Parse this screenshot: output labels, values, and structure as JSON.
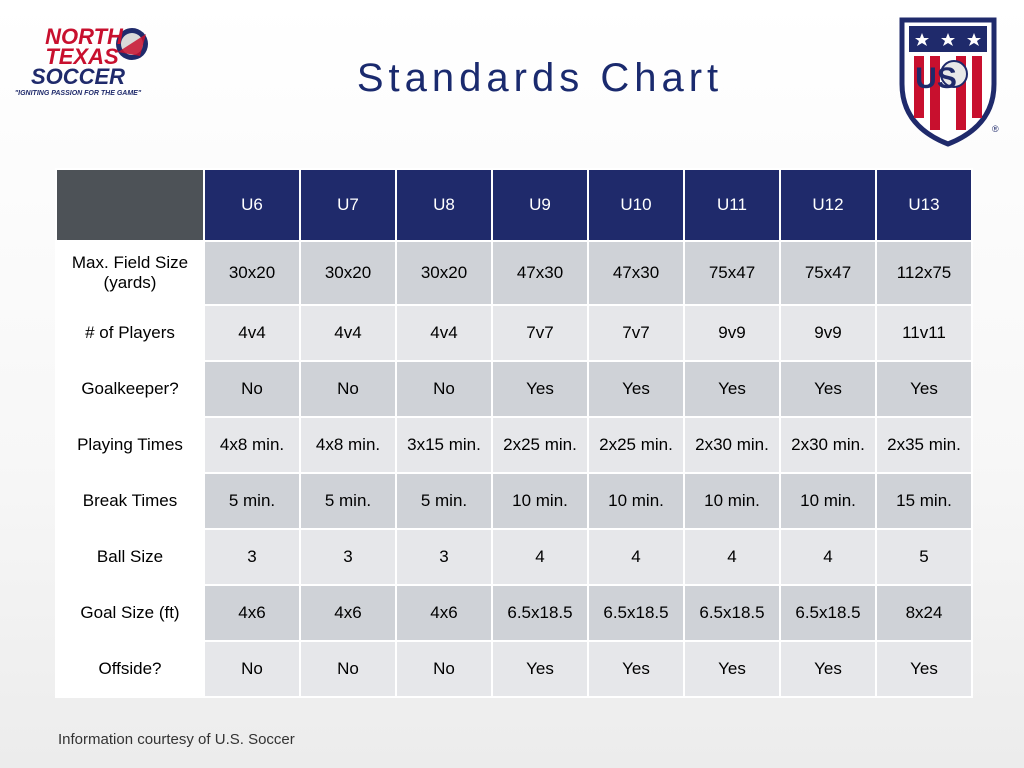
{
  "title": "Standards Chart",
  "logos": {
    "left": {
      "line1": "NORTH",
      "line2": "TEXAS",
      "line3": "SOCCER",
      "tagline": "\"IGNITING PASSION FOR THE GAME\""
    },
    "right": {
      "text": "US",
      "mark": "®"
    }
  },
  "table": {
    "columns": [
      "U6",
      "U7",
      "U8",
      "U9",
      "U10",
      "U11",
      "U12",
      "U13"
    ],
    "rows": [
      {
        "label": "Max. Field Size (yards)",
        "values": [
          "30x20",
          "30x20",
          "30x20",
          "47x30",
          "47x30",
          "75x47",
          "75x47",
          "112x75"
        ]
      },
      {
        "label": "# of Players",
        "values": [
          "4v4",
          "4v4",
          "4v4",
          "7v7",
          "7v7",
          "9v9",
          "9v9",
          "11v11"
        ]
      },
      {
        "label": "Goalkeeper?",
        "values": [
          "No",
          "No",
          "No",
          "Yes",
          "Yes",
          "Yes",
          "Yes",
          "Yes"
        ]
      },
      {
        "label": "Playing Times",
        "values": [
          "4x8 min.",
          "4x8 min.",
          "3x15 min.",
          "2x25 min.",
          "2x25 min.",
          "2x30 min.",
          "2x30 min.",
          "2x35 min."
        ]
      },
      {
        "label": "Break Times",
        "values": [
          "5 min.",
          "5 min.",
          "5 min.",
          "10 min.",
          "10 min.",
          "10 min.",
          "10 min.",
          "15 min."
        ]
      },
      {
        "label": "Ball Size",
        "values": [
          "3",
          "3",
          "3",
          "4",
          "4",
          "4",
          "4",
          "5"
        ]
      },
      {
        "label": "Goal Size (ft)",
        "values": [
          "4x6",
          "4x6",
          "4x6",
          "6.5x18.5",
          "6.5x18.5",
          "6.5x18.5",
          "6.5x18.5",
          "8x24"
        ]
      },
      {
        "label": "Offside?",
        "values": [
          "No",
          "No",
          "No",
          "Yes",
          "Yes",
          "Yes",
          "Yes",
          "Yes"
        ]
      }
    ]
  },
  "footer": "Information courtesy of U.S. Soccer",
  "colors": {
    "header": "#1f2a6b",
    "corner": "#4d5257",
    "row_dark": "#cfd2d7",
    "row_light": "#e6e7ea",
    "title": "#1a2a6e"
  }
}
